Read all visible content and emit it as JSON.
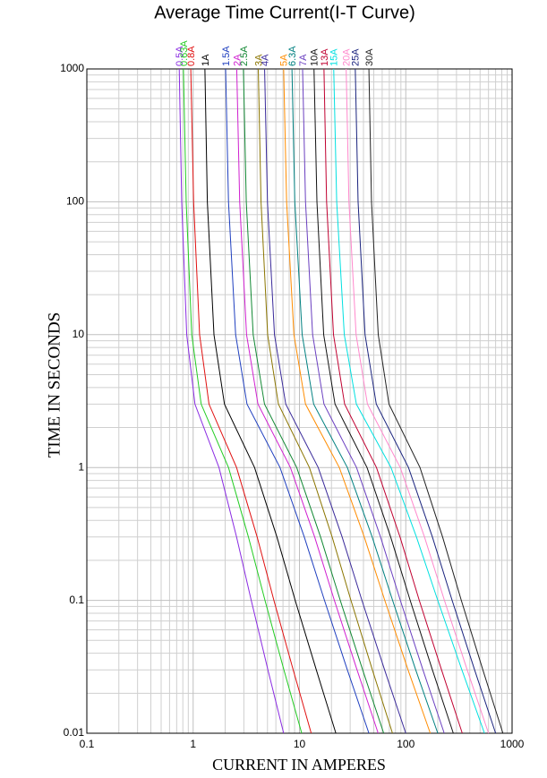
{
  "chart_data": {
    "type": "line",
    "title": "Average Time Current(I-T Curve)",
    "x_label": "CURRENT IN AMPERES",
    "y_label": "TIME IN SECONDS",
    "xscale": "log",
    "yscale": "log",
    "grid": true,
    "xlim": [
      0.1,
      1000
    ],
    "xticks": [
      0.1,
      1,
      10,
      100,
      1000
    ],
    "ylim": [
      0.01,
      1000
    ],
    "yticks": [
      0.01,
      0.1,
      1,
      10,
      100,
      1000
    ],
    "series": [
      {
        "name": "0.5A",
        "color": "#8a2be2",
        "x": [
          0.74,
          0.78,
          0.87,
          1.04,
          1.75,
          2.56,
          3.52,
          5.05,
          7.1
        ],
        "values": [
          1000,
          100,
          10,
          3,
          1,
          0.3,
          0.1,
          0.03,
          0.01
        ]
      },
      {
        "name": "0.63A",
        "color": "#22cc22",
        "x": [
          0.81,
          0.86,
          0.97,
          1.19,
          2.15,
          3.31,
          4.74,
          7.14,
          10.5
        ],
        "values": [
          1000,
          100,
          10,
          3,
          1,
          0.3,
          0.1,
          0.03,
          0.01
        ]
      },
      {
        "name": "0.8A",
        "color": "#e01010",
        "x": [
          0.95,
          1.01,
          1.15,
          1.41,
          2.56,
          4.0,
          5.75,
          8.73,
          12.9
        ],
        "values": [
          1000,
          100,
          10,
          3,
          1,
          0.3,
          0.1,
          0.03,
          0.01
        ]
      },
      {
        "name": "1A",
        "color": "#000000",
        "x": [
          1.29,
          1.36,
          1.57,
          1.97,
          3.78,
          6.14,
          9.12,
          14.4,
          22
        ],
        "values": [
          1000,
          100,
          10,
          3,
          1,
          0.3,
          0.1,
          0.03,
          0.01
        ]
      },
      {
        "name": "1.5A",
        "color": "#1f3fbf",
        "x": [
          2.02,
          2.15,
          2.51,
          3.21,
          6.56,
          11.1,
          17.2,
          28.2,
          45
        ],
        "values": [
          1000,
          100,
          10,
          3,
          1,
          0.3,
          0.1,
          0.03,
          0.01
        ]
      },
      {
        "name": "2A",
        "color": "#d020d0",
        "x": [
          2.57,
          2.74,
          3.18,
          4.07,
          8.22,
          13.9,
          21.3,
          34.8,
          55
        ],
        "values": [
          1000,
          100,
          10,
          3,
          1,
          0.3,
          0.1,
          0.03,
          0.01
        ]
      },
      {
        "name": "2.5A",
        "color": "#118833",
        "x": [
          2.97,
          3.16,
          3.67,
          4.69,
          9.42,
          15.8,
          24.2,
          39.3,
          62
        ],
        "values": [
          1000,
          100,
          10,
          3,
          1,
          0.3,
          0.1,
          0.03,
          0.01
        ]
      },
      {
        "name": "3A",
        "color": "#8b7500",
        "x": [
          4.1,
          4.35,
          5.02,
          6.34,
          12.4,
          20.3,
          30.5,
          48.5,
          75
        ],
        "values": [
          1000,
          100,
          10,
          3,
          1,
          0.3,
          0.1,
          0.03,
          0.01
        ]
      },
      {
        "name": "4A",
        "color": "#3a2a9a",
        "x": [
          4.7,
          5.0,
          5.82,
          7.43,
          15.0,
          25.2,
          38.7,
          63.2,
          100
        ],
        "values": [
          1000,
          100,
          10,
          3,
          1,
          0.3,
          0.1,
          0.03,
          0.01
        ]
      },
      {
        "name": "5A",
        "color": "#ff8c00",
        "x": [
          7.1,
          7.57,
          8.87,
          11.4,
          23.7,
          40.7,
          63.5,
          105,
          170
        ],
        "values": [
          1000,
          100,
          10,
          3,
          1,
          0.3,
          0.1,
          0.03,
          0.01
        ]
      },
      {
        "name": "6.3A",
        "color": "#008080",
        "x": [
          8.5,
          9.04,
          10.6,
          13.6,
          28.2,
          48.3,
          75.2,
          124,
          200
        ],
        "values": [
          1000,
          100,
          10,
          3,
          1,
          0.3,
          0.1,
          0.03,
          0.01
        ]
      },
      {
        "name": "7A",
        "color": "#6a3fc0",
        "x": [
          10.7,
          11.4,
          13.3,
          17.0,
          34.4,
          57.9,
          88.9,
          145,
          230
        ],
        "values": [
          1000,
          100,
          10,
          3,
          1,
          0.3,
          0.1,
          0.03,
          0.01
        ]
      },
      {
        "name": "10A",
        "color": "#111111",
        "x": [
          13.7,
          14.6,
          16.9,
          21.6,
          43.2,
          72.1,
          110,
          178,
          280
        ],
        "values": [
          1000,
          100,
          10,
          3,
          1,
          0.3,
          0.1,
          0.03,
          0.01
        ]
      },
      {
        "name": "13A",
        "color": "#c00030",
        "x": [
          17,
          18,
          20.9,
          26.6,
          53,
          88.3,
          134,
          217,
          340
        ],
        "values": [
          1000,
          100,
          10,
          3,
          1,
          0.3,
          0.1,
          0.03,
          0.01
        ]
      },
      {
        "name": "15A",
        "color": "#00e0e0",
        "x": [
          21,
          22.4,
          26.4,
          34.3,
          72.6,
          126,
          200,
          337,
          550
        ],
        "values": [
          1000,
          100,
          10,
          3,
          1,
          0.3,
          0.1,
          0.03,
          0.01
        ]
      },
      {
        "name": "20A",
        "color": "#ff88cc",
        "x": [
          27.5,
          29.2,
          34.1,
          43.6,
          88.7,
          150,
          231,
          378,
          600
        ],
        "values": [
          1000,
          100,
          10,
          3,
          1,
          0.3,
          0.1,
          0.03,
          0.01
        ]
      },
      {
        "name": "25A",
        "color": "#1a237e",
        "x": [
          33.5,
          35.6,
          41.4,
          52.8,
          106,
          178,
          273,
          444,
          700
        ],
        "values": [
          1000,
          100,
          10,
          3,
          1,
          0.3,
          0.1,
          0.03,
          0.01
        ]
      },
      {
        "name": "30A",
        "color": "#222222",
        "x": [
          45,
          47.6,
          55.1,
          69.5,
          136,
          222,
          333,
          531,
          820
        ],
        "values": [
          1000,
          100,
          10,
          3,
          1,
          0.3,
          0.1,
          0.03,
          0.01
        ]
      }
    ]
  }
}
